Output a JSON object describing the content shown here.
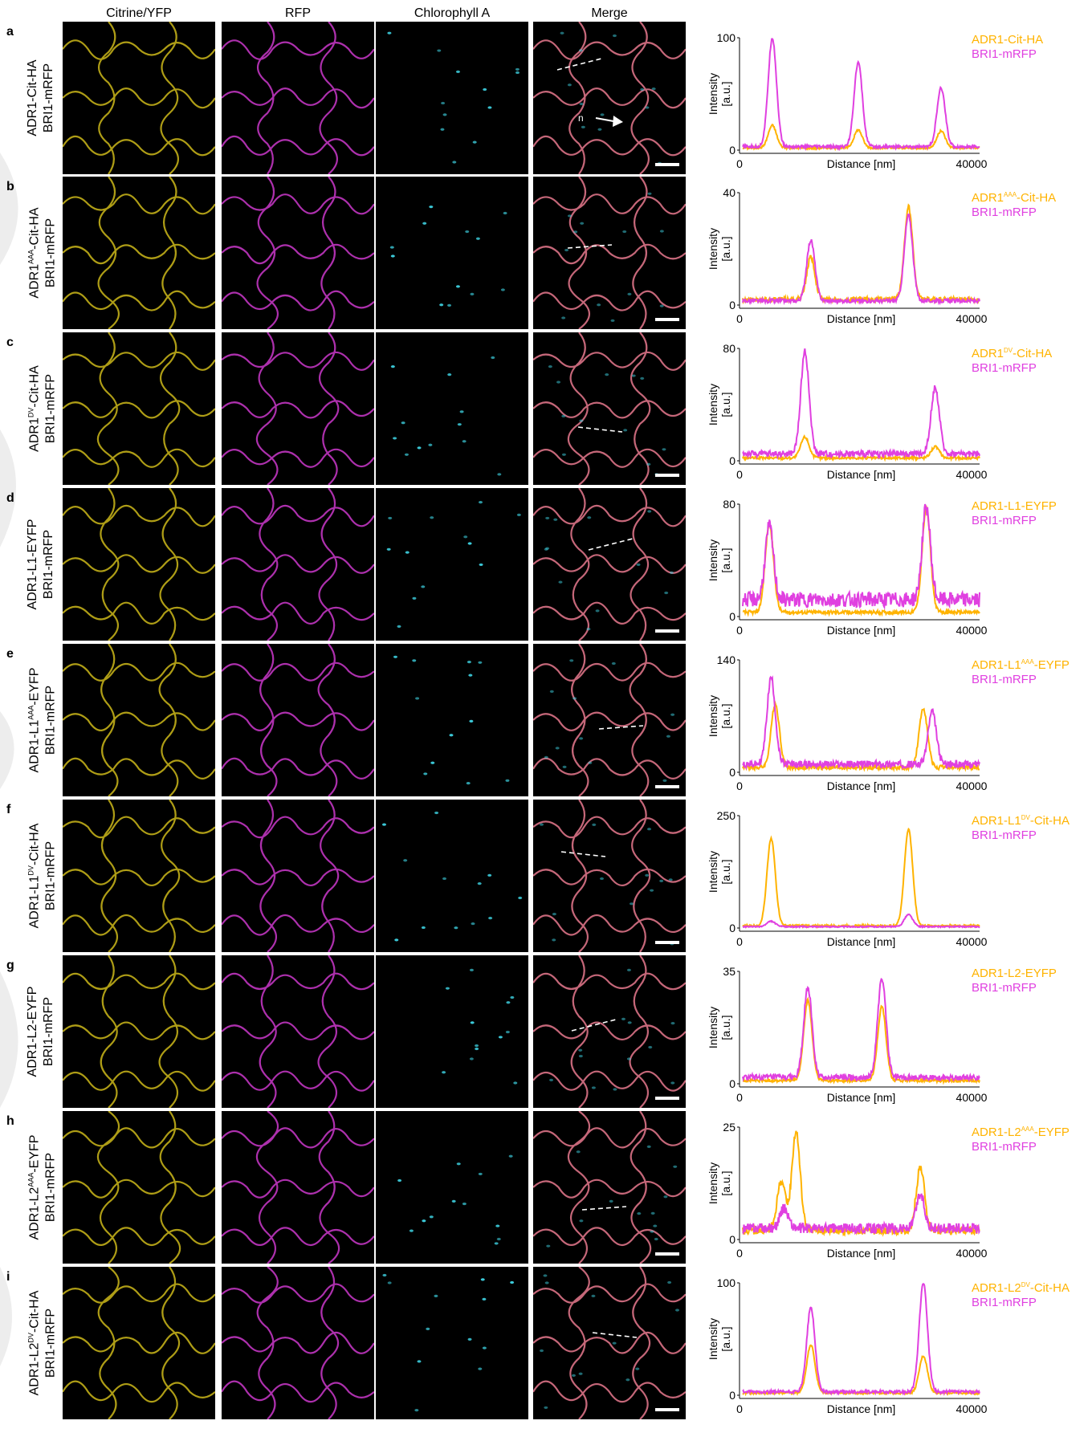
{
  "columns": [
    "Citrine/YFP",
    "RFP",
    "Chlorophyll A",
    "Merge"
  ],
  "merge_annotation": "n",
  "colors": {
    "series1": "#FFB300",
    "series2": "#E040E0",
    "yfp": "#E8D21E",
    "rfp": "#D83CD8",
    "chl": "#3FD6E6"
  },
  "rows": [
    {
      "letter": "a",
      "label_line1": "ADR1-Cit-HA",
      "label_line1_base": "ADR1",
      "label_line1_sup": "",
      "label_line1_rest": "-Cit-HA",
      "label_line2": "BRI1-mRFP",
      "legend1_base": "ADR1",
      "legend1_sup": "",
      "legend1_rest": "-Cit-HA",
      "legend2": "BRI1-mRFP"
    },
    {
      "letter": "b",
      "label_line1": "ADR1AAA-Cit-HA",
      "label_line1_base": "ADR1",
      "label_line1_sup": "AAA",
      "label_line1_rest": "-Cit-HA",
      "label_line2": "BRI1-mRFP",
      "legend1_base": "ADR1",
      "legend1_sup": "AAA",
      "legend1_rest": "-Cit-HA",
      "legend2": "BRI1-mRFP"
    },
    {
      "letter": "c",
      "label_line1": "ADR1DV-Cit-HA",
      "label_line1_base": "ADR1",
      "label_line1_sup": "DV",
      "label_line1_rest": "-Cit-HA",
      "label_line2": "BRI1-mRFP",
      "legend1_base": "ADR1",
      "legend1_sup": "DV",
      "legend1_rest": "-Cit-HA",
      "legend2": "BRI1-mRFP"
    },
    {
      "letter": "d",
      "label_line1": "ADR1-L1-EYFP",
      "label_line1_base": "ADR1-L1",
      "label_line1_sup": "",
      "label_line1_rest": "-EYFP",
      "label_line2": "BRI1-mRFP",
      "legend1_base": "ADR1-L1",
      "legend1_sup": "",
      "legend1_rest": "-EYFP",
      "legend2": "BRI1-mRFP"
    },
    {
      "letter": "e",
      "label_line1": "ADR1-L1AAA-EYFP",
      "label_line1_base": "ADR1-L1",
      "label_line1_sup": "AAA",
      "label_line1_rest": "-EYFP",
      "label_line2": "BRI1-mRFP",
      "legend1_base": "ADR1-L1",
      "legend1_sup": "AAA",
      "legend1_rest": "-EYFP",
      "legend2": "BRI1-mRFP"
    },
    {
      "letter": "f",
      "label_line1": "ADR1-L1DV-Cit-HA",
      "label_line1_base": "ADR1-L1",
      "label_line1_sup": "DV",
      "label_line1_rest": "-Cit-HA",
      "label_line2": "BRI1-mRFP",
      "legend1_base": "ADR1-L1",
      "legend1_sup": "DV",
      "legend1_rest": "-Cit-HA",
      "legend2": "BRI1-mRFP"
    },
    {
      "letter": "g",
      "label_line1": "ADR1-L2-EYFP",
      "label_line1_base": "ADR1-L2",
      "label_line1_sup": "",
      "label_line1_rest": "-EYFP",
      "label_line2": "BRI1-mRFP",
      "legend1_base": "ADR1-L2",
      "legend1_sup": "",
      "legend1_rest": "-EYFP",
      "legend2": "BRI1-mRFP"
    },
    {
      "letter": "h",
      "label_line1": "ADR1-L2AAA-EYFP",
      "label_line1_base": "ADR1-L2",
      "label_line1_sup": "AAA",
      "label_line1_rest": "-EYFP",
      "label_line2": "BRI1-mRFP",
      "legend1_base": "ADR1-L2",
      "legend1_sup": "AAA",
      "legend1_rest": "-EYFP",
      "legend2": "BRI1-mRFP"
    },
    {
      "letter": "i",
      "label_line1": "ADR1-L2DV-Cit-HA",
      "label_line1_base": "ADR1-L2",
      "label_line1_sup": "DV",
      "label_line1_rest": "-Cit-HA",
      "label_line2": "BRI1-mRFP",
      "legend1_base": "ADR1-L2",
      "legend1_sup": "DV",
      "legend1_rest": "-Cit-HA",
      "legend2": "BRI1-mRFP"
    }
  ],
  "chart_data": [
    {
      "panel": "a",
      "type": "line",
      "xlabel": "Distance [nm]",
      "ylabel_line1": "Intensity",
      "ylabel_line2": "[a.u.]",
      "xlim": [
        0,
        40000
      ],
      "ylim": [
        0,
        100
      ],
      "xticks": [
        "0",
        "40000"
      ],
      "yticks": [
        "0",
        "100"
      ],
      "series": [
        {
          "name": "ADR1-Cit-HA",
          "color": "#FFB300",
          "peaks": [
            [
              5000,
              22
            ],
            [
              19500,
              18
            ],
            [
              33500,
              17
            ]
          ],
          "baseline": 2
        },
        {
          "name": "BRI1-mRFP",
          "color": "#E040E0",
          "peaks": [
            [
              5000,
              100
            ],
            [
              19500,
              78
            ],
            [
              33500,
              55
            ]
          ],
          "baseline": 3
        }
      ]
    },
    {
      "panel": "b",
      "type": "line",
      "xlabel": "Distance [nm]",
      "ylabel_line1": "Intensity",
      "ylabel_line2": "[a.u.]",
      "xlim": [
        0,
        40000
      ],
      "ylim": [
        0,
        40
      ],
      "xticks": [
        "0",
        "40000"
      ],
      "yticks": [
        "0",
        "40"
      ],
      "series": [
        {
          "name": "ADR1AAA-Cit-HA",
          "color": "#FFB300",
          "peaks": [
            [
              11500,
              17
            ],
            [
              28000,
              35
            ]
          ],
          "baseline": 2
        },
        {
          "name": "BRI1-mRFP",
          "color": "#E040E0",
          "peaks": [
            [
              11500,
              23
            ],
            [
              28000,
              32
            ]
          ],
          "baseline": 1.5
        }
      ]
    },
    {
      "panel": "c",
      "type": "line",
      "xlabel": "Distance [nm]",
      "ylabel_line1": "Intensity",
      "ylabel_line2": "[a.u.]",
      "xlim": [
        0,
        40000
      ],
      "ylim": [
        0,
        80
      ],
      "xticks": [
        "0",
        "40000"
      ],
      "yticks": [
        "0",
        "80"
      ],
      "series": [
        {
          "name": "ADR1DV-Cit-HA",
          "color": "#FFB300",
          "peaks": [
            [
              10500,
              17
            ],
            [
              32500,
              10
            ]
          ],
          "baseline": 2
        },
        {
          "name": "BRI1-mRFP",
          "color": "#E040E0",
          "peaks": [
            [
              10500,
              78
            ],
            [
              32500,
              52
            ]
          ],
          "baseline": 5
        }
      ]
    },
    {
      "panel": "d",
      "type": "line",
      "xlabel": "Distance [nm]",
      "ylabel_line1": "Intensity",
      "ylabel_line2": "[a.u.]",
      "xlim": [
        0,
        40000
      ],
      "ylim": [
        0,
        80
      ],
      "xticks": [
        "0",
        "40000"
      ],
      "yticks": [
        "0",
        "80"
      ],
      "series": [
        {
          "name": "ADR1-L1-EYFP",
          "color": "#FFB300",
          "peaks": [
            [
              4500,
              66
            ],
            [
              31000,
              77
            ]
          ],
          "baseline": 3
        },
        {
          "name": "BRI1-mRFP",
          "color": "#E040E0",
          "peaks": [
            [
              4500,
              64
            ],
            [
              31000,
              78
            ]
          ],
          "baseline": 12
        }
      ]
    },
    {
      "panel": "e",
      "type": "line",
      "xlabel": "Distance [nm]",
      "ylabel_line1": "Intensity",
      "ylabel_line2": "[a.u.]",
      "xlim": [
        0,
        40000
      ],
      "ylim": [
        0,
        140
      ],
      "xticks": [
        "0",
        "40000"
      ],
      "yticks": [
        "0",
        "140"
      ],
      "series": [
        {
          "name": "ADR1-L1AAA-EYFP",
          "color": "#FFB300",
          "peaks": [
            [
              5500,
              85
            ],
            [
              30500,
              80
            ]
          ],
          "baseline": 6
        },
        {
          "name": "BRI1-mRFP",
          "color": "#E040E0",
          "peaks": [
            [
              4800,
              118
            ],
            [
              32000,
              75
            ]
          ],
          "baseline": 10
        }
      ]
    },
    {
      "panel": "f",
      "type": "line",
      "xlabel": "Distance [nm]",
      "ylabel_line1": "Intensity",
      "ylabel_line2": "[a.u.]",
      "xlim": [
        0,
        40000
      ],
      "ylim": [
        0,
        250
      ],
      "xticks": [
        "0",
        "40000"
      ],
      "yticks": [
        "0",
        "250"
      ],
      "series": [
        {
          "name": "ADR1-L1DV-Cit-HA",
          "color": "#FFB300",
          "peaks": [
            [
              4800,
              200
            ],
            [
              28000,
              220
            ]
          ],
          "baseline": 5
        },
        {
          "name": "BRI1-mRFP",
          "color": "#E040E0",
          "peaks": [
            [
              4800,
              15
            ],
            [
              28000,
              30
            ]
          ],
          "baseline": 3
        }
      ]
    },
    {
      "panel": "g",
      "type": "line",
      "xlabel": "Distance [nm]",
      "ylabel_line1": "Intensity",
      "ylabel_line2": "[a.u.]",
      "xlim": [
        0,
        40000
      ],
      "ylim": [
        0,
        35
      ],
      "xticks": [
        "0",
        "40000"
      ],
      "yticks": [
        "0",
        "35"
      ],
      "series": [
        {
          "name": "ADR1-L2-EYFP",
          "color": "#FFB300",
          "peaks": [
            [
              11000,
              26
            ],
            [
              23500,
              24
            ]
          ],
          "baseline": 1
        },
        {
          "name": "BRI1-mRFP",
          "color": "#E040E0",
          "peaks": [
            [
              11000,
              30
            ],
            [
              23500,
              33
            ]
          ],
          "baseline": 2
        }
      ]
    },
    {
      "panel": "h",
      "type": "line",
      "xlabel": "Distance [nm]",
      "ylabel_line1": "Intensity",
      "ylabel_line2": "[a.u.]",
      "xlim": [
        0,
        40000
      ],
      "ylim": [
        0,
        25
      ],
      "xticks": [
        "0",
        "40000"
      ],
      "yticks": [
        "0",
        "25"
      ],
      "series": [
        {
          "name": "ADR1-L2AAA-EYFP",
          "color": "#FFB300",
          "peaks": [
            [
              6500,
              13
            ],
            [
              9000,
              24
            ],
            [
              30000,
              16
            ]
          ],
          "baseline": 2
        },
        {
          "name": "BRI1-mRFP",
          "color": "#E040E0",
          "peaks": [
            [
              7000,
              7
            ],
            [
              30000,
              10
            ]
          ],
          "baseline": 2.5
        }
      ]
    },
    {
      "panel": "i",
      "type": "line",
      "xlabel": "Distance [nm]",
      "ylabel_line1": "Intensity",
      "ylabel_line2": "[a.u.]",
      "xlim": [
        0,
        40000
      ],
      "ylim": [
        0,
        100
      ],
      "xticks": [
        "0",
        "40000"
      ],
      "yticks": [
        "0",
        "100"
      ],
      "series": [
        {
          "name": "ADR1-L2DV-Cit-HA",
          "color": "#FFB300",
          "peaks": [
            [
              11500,
              45
            ],
            [
              30500,
              35
            ]
          ],
          "baseline": 2
        },
        {
          "name": "BRI1-mRFP",
          "color": "#E040E0",
          "peaks": [
            [
              11500,
              78
            ],
            [
              30500,
              100
            ]
          ],
          "baseline": 3
        }
      ]
    }
  ]
}
